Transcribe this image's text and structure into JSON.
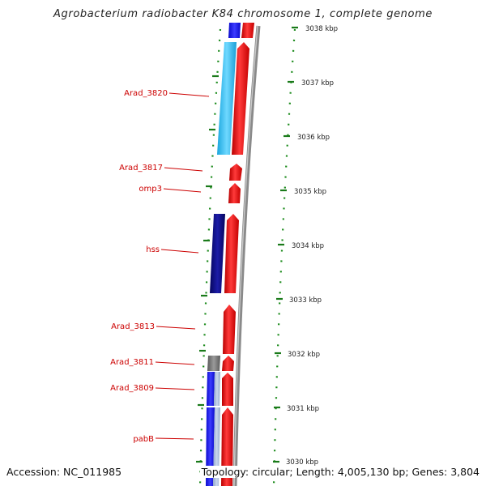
{
  "title": "Agrobacterium radiobacter K84 chromosome 1, complete genome",
  "accession": "Accession: NC_011985",
  "topology": "Topology: circular; Length: 4,005,130 bp; Genes: 3,804",
  "kbp_labels": [
    "3038 kbp",
    "3037 kbp",
    "3036 kbp",
    "3035 kbp",
    "3034 kbp",
    "3033 kbp",
    "3032 kbp",
    "3031 kbp",
    "3030 kbp"
  ],
  "gene_labels": [
    "Arad_3820",
    "Arad_3817",
    "omp3",
    "hss",
    "Arad_3813",
    "Arad_3811",
    "Arad_3809",
    "pabB"
  ],
  "colors": {
    "label": "#cc0000",
    "forward_gene": "#ee1111",
    "reverse_gene_navy": "#0a0a80",
    "reverse_gene_cyan": "#33bbee",
    "reverse_gene_blue": "#1111dd",
    "backbone": "#8a8a8a",
    "tick": "#1a7a1a"
  }
}
